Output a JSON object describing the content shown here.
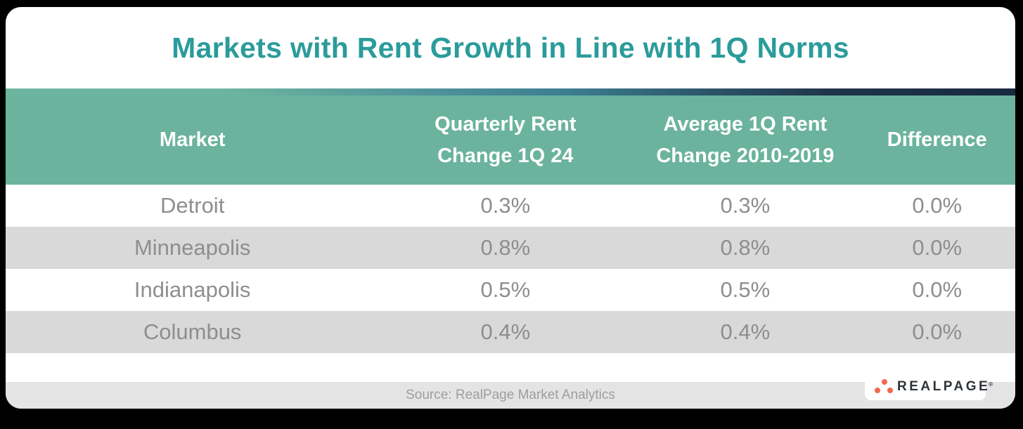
{
  "title": "Markets with Rent Growth in Line with 1Q Norms",
  "chart_data": {
    "type": "table",
    "title": "Markets with Rent Growth in Line with 1Q Norms",
    "columns": [
      "Market",
      "Quarterly Rent Change 1Q 24",
      "Average 1Q Rent Change 2010-2019",
      "Difference"
    ],
    "rows": [
      [
        "Detroit",
        "0.3%",
        "0.3%",
        "0.0%"
      ],
      [
        "Minneapolis",
        "0.8%",
        "0.8%",
        "0.0%"
      ],
      [
        "Indianapolis",
        "0.5%",
        "0.5%",
        "0.0%"
      ],
      [
        "Columbus",
        "0.4%",
        "0.4%",
        "0.0%"
      ]
    ],
    "source": "Source: RealPage Market Analytics",
    "layout_hints": {
      "alternating_row_shading": true,
      "header_background": "#6bb39d",
      "accent_strip_gradient": [
        "#6cb59e",
        "#3d7f91",
        "#172a3f"
      ]
    }
  },
  "footer": {
    "source_label": "Source: RealPage Market Analytics"
  },
  "logo": {
    "brand": "REALPAGE",
    "trademark": "®",
    "dots_icon": "realpage-tri-dots-icon",
    "dot_color": "#f0694f",
    "text_color": "#2f343a"
  },
  "colors": {
    "title_teal": "#2b9b9b",
    "header_green": "#6bb39d",
    "accent_navy": "#1f3349",
    "row_alt_gray": "#d9d9d9",
    "row_text_gray": "#8e8e8e",
    "footer_bar_gray": "#e4e4e4",
    "footer_text_gray": "#9e9e9e",
    "background": "#000000"
  }
}
